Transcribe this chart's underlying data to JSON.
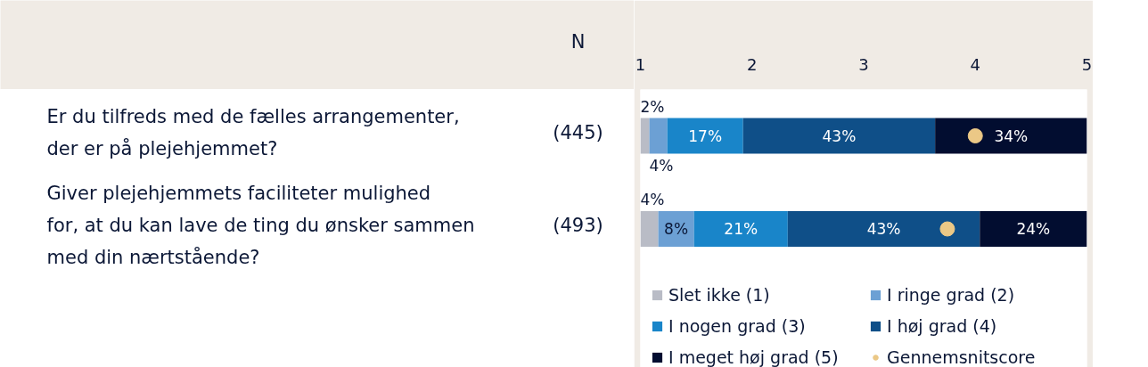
{
  "chart_data": {
    "type": "bar",
    "orientation": "horizontal",
    "stacked": true,
    "categories": [
      "Er du tilfreds med de fælles arrangementer, der er på plejehjemmet?",
      "Giver plejehjemmets faciliteter mulighed for, at du kan lave de ting du ønsker sammen med din nærtstående?"
    ],
    "y2label": "N",
    "y2_categories": [
      "(445)",
      "(493)"
    ],
    "xlim": [
      0,
      100
    ],
    "x2lim": [
      1,
      5
    ],
    "x2ticks": [
      1,
      2,
      3,
      4,
      5
    ],
    "legend": "bottom",
    "series": [
      {
        "name": "Slet ikke (1)",
        "color": "#b9bcc6",
        "values": [
          2,
          4
        ],
        "value_labels": [
          "2%",
          "4%"
        ]
      },
      {
        "name": "I ringe grad (2)",
        "color": "#6ca0d4",
        "values": [
          4,
          8
        ],
        "value_labels": [
          "4%",
          "8%"
        ]
      },
      {
        "name": "I nogen grad (3)",
        "color": "#1985c9",
        "values": [
          17,
          21
        ],
        "value_labels": [
          "17%",
          "21%"
        ]
      },
      {
        "name": "I høj grad (4)",
        "color": "#0f4f88",
        "values": [
          43,
          43
        ],
        "value_labels": [
          "43%",
          "43%"
        ]
      },
      {
        "name": "I meget høj grad (5)",
        "color": "#020d30",
        "values": [
          34,
          24
        ],
        "value_labels": [
          "34%",
          "24%"
        ]
      },
      {
        "name": "Gennemsnitscore",
        "type": "scatter",
        "axis": "x2",
        "marker": "circle",
        "color": "#ebc886",
        "values": [
          4.0,
          3.75
        ]
      }
    ]
  }
}
